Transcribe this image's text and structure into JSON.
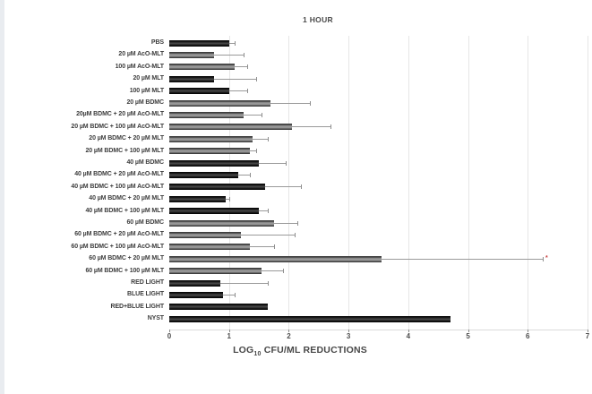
{
  "window": {
    "background": "#ffffff",
    "left_edge_strip_color": "#e9ecf0"
  },
  "chart_data": {
    "type": "bar",
    "orientation": "horizontal",
    "title": "1 HOUR",
    "xlabel": {
      "pre": "LOG",
      "sub": "10",
      "post": " CFU/ML REDUCTIONS"
    },
    "xlabel_text": "LOG10 CFU/ML REDUCTIONS",
    "xlim": [
      0,
      7
    ],
    "x_ticks": [
      "0",
      "1",
      "2",
      "3",
      "4",
      "5",
      "6",
      "7"
    ],
    "grid": "vertical-light-gray",
    "legend": "none",
    "bar_colors": {
      "black": "#1c1c1c",
      "gray": "#8a8a8a"
    },
    "error_bar_color": "#9a9a9a",
    "significance_marker": "*",
    "significance_marker_color": "#c94444",
    "bars": [
      {
        "label": "PBS",
        "value": 1.0,
        "error_high": 1.1,
        "color": "black",
        "significance": false
      },
      {
        "label": "20 µM AcO-MLT",
        "value": 0.75,
        "error_high": 1.25,
        "color": "gray",
        "significance": false
      },
      {
        "label": "100 µM AcO-MLT",
        "value": 1.1,
        "error_high": 1.3,
        "color": "gray",
        "significance": false
      },
      {
        "label": "20 µM MLT",
        "value": 0.75,
        "error_high": 1.45,
        "color": "black",
        "significance": false
      },
      {
        "label": "100 µM MLT",
        "value": 1.0,
        "error_high": 1.3,
        "color": "black",
        "significance": false
      },
      {
        "label": "20 µM BDMC",
        "value": 1.7,
        "error_high": 2.35,
        "color": "gray",
        "significance": false
      },
      {
        "label": "20µM BDMC + 20 µM AcO-MLT",
        "value": 1.25,
        "error_high": 1.55,
        "color": "gray",
        "significance": false
      },
      {
        "label": "20 µM BDMC + 100 µM AcO-MLT",
        "value": 2.05,
        "error_high": 2.7,
        "color": "gray",
        "significance": false
      },
      {
        "label": "20 µM BDMC + 20 µM MLT",
        "value": 1.4,
        "error_high": 1.65,
        "color": "gray",
        "significance": false
      },
      {
        "label": "20 µM BDMC + 100 µM MLT",
        "value": 1.35,
        "error_high": 1.45,
        "color": "gray",
        "significance": false
      },
      {
        "label": "40 µM BDMC",
        "value": 1.5,
        "error_high": 1.95,
        "color": "black",
        "significance": false
      },
      {
        "label": "40 µM BDMC + 20 µM AcO-MLT",
        "value": 1.15,
        "error_high": 1.35,
        "color": "black",
        "significance": false
      },
      {
        "label": "40 µM BDMC + 100 µM AcO-MLT",
        "value": 1.6,
        "error_high": 2.2,
        "color": "black",
        "significance": false
      },
      {
        "label": "40 µM BDMC + 20 µM MLT",
        "value": 0.95,
        "error_high": 1.0,
        "color": "black",
        "significance": false
      },
      {
        "label": "40 µM BDMC + 100 µM MLT",
        "value": 1.5,
        "error_high": 1.65,
        "color": "black",
        "significance": false
      },
      {
        "label": "60 µM BDMC",
        "value": 1.75,
        "error_high": 2.15,
        "color": "gray",
        "significance": false
      },
      {
        "label": "60 µM BDMC + 20 µM AcO-MLT",
        "value": 1.2,
        "error_high": 2.1,
        "color": "gray",
        "significance": false
      },
      {
        "label": "60 µM BDMC + 100 µM AcO-MLT",
        "value": 1.35,
        "error_high": 1.75,
        "color": "gray",
        "significance": false
      },
      {
        "label": "60 µM BDMC + 20 µM MLT",
        "value": 3.55,
        "error_high": 6.25,
        "color": "gray",
        "significance": true
      },
      {
        "label": "60 µM BDMC + 100 µM MLT",
        "value": 1.55,
        "error_high": 1.9,
        "color": "gray",
        "significance": false
      },
      {
        "label": "RED LIGHT",
        "value": 0.85,
        "error_high": 1.65,
        "color": "black",
        "significance": false
      },
      {
        "label": "BLUE LIGHT",
        "value": 0.9,
        "error_high": 1.1,
        "color": "black",
        "significance": false
      },
      {
        "label": "RED+BLUE LIGHT",
        "value": 1.65,
        "error_high": null,
        "color": "black",
        "significance": false
      },
      {
        "label": "NYST",
        "value": 4.7,
        "error_high": null,
        "color": "black",
        "significance": false
      }
    ]
  }
}
